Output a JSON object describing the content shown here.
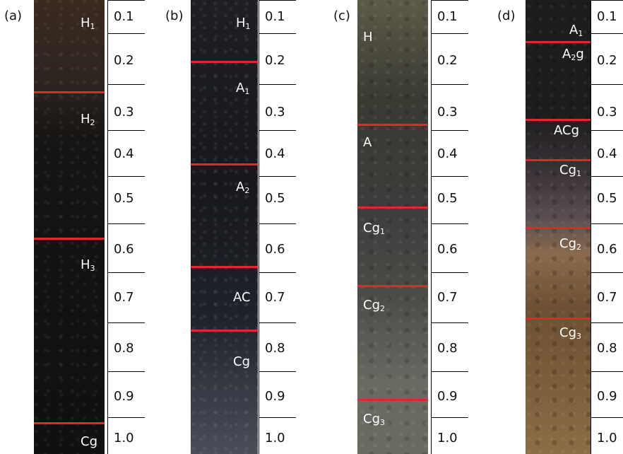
{
  "panels": [
    {
      "letter": "(a)",
      "horizons": [
        {
          "label": "H",
          "sub": "1"
        },
        {
          "label": "H",
          "sub": "2"
        },
        {
          "label": "H",
          "sub": "3"
        },
        {
          "label": "Cg",
          "sub": ""
        }
      ],
      "depths": [
        "0.1",
        "0.2",
        "0.3",
        "0.4",
        "0.5",
        "0.6",
        "0.7",
        "0.8",
        "0.9",
        "1.0"
      ]
    },
    {
      "letter": "(b)",
      "horizons": [
        {
          "label": "H",
          "sub": "1"
        },
        {
          "label": "A",
          "sub": "1"
        },
        {
          "label": "A",
          "sub": "2"
        },
        {
          "label": "AC",
          "sub": ""
        },
        {
          "label": "Cg",
          "sub": ""
        }
      ],
      "depths": [
        "0.1",
        "0.2",
        "0.3",
        "0.4",
        "0.5",
        "0.6",
        "0.7",
        "0.8",
        "0.9",
        "1.0"
      ]
    },
    {
      "letter": "(c)",
      "horizons": [
        {
          "label": "H",
          "sub": ""
        },
        {
          "label": "A",
          "sub": ""
        },
        {
          "label": "Cg",
          "sub": "1"
        },
        {
          "label": "Cg",
          "sub": "2"
        },
        {
          "label": "Cg",
          "sub": "3"
        }
      ],
      "depths": [
        "0.1",
        "0.2",
        "0.3",
        "0.4",
        "0.5",
        "0.6",
        "0.7",
        "0.8",
        "0.9",
        "1.0"
      ]
    },
    {
      "letter": "(d)",
      "horizons": [
        {
          "label": "A",
          "sub": "1"
        },
        {
          "label": "A",
          "sub": "2",
          "suffix": "g"
        },
        {
          "label": "ACg",
          "sub": ""
        },
        {
          "label": "Cg",
          "sub": "1"
        },
        {
          "label": "Cg",
          "sub": "2"
        },
        {
          "label": "Cg",
          "sub": "3"
        }
      ],
      "depths": [
        "0.1",
        "0.2",
        "0.3",
        "0.4",
        "0.5",
        "0.6",
        "0.7",
        "0.8",
        "0.9",
        "1.0"
      ]
    }
  ],
  "colors": {
    "horizon_line": "#e0282a",
    "label_text": "#ffffff"
  }
}
